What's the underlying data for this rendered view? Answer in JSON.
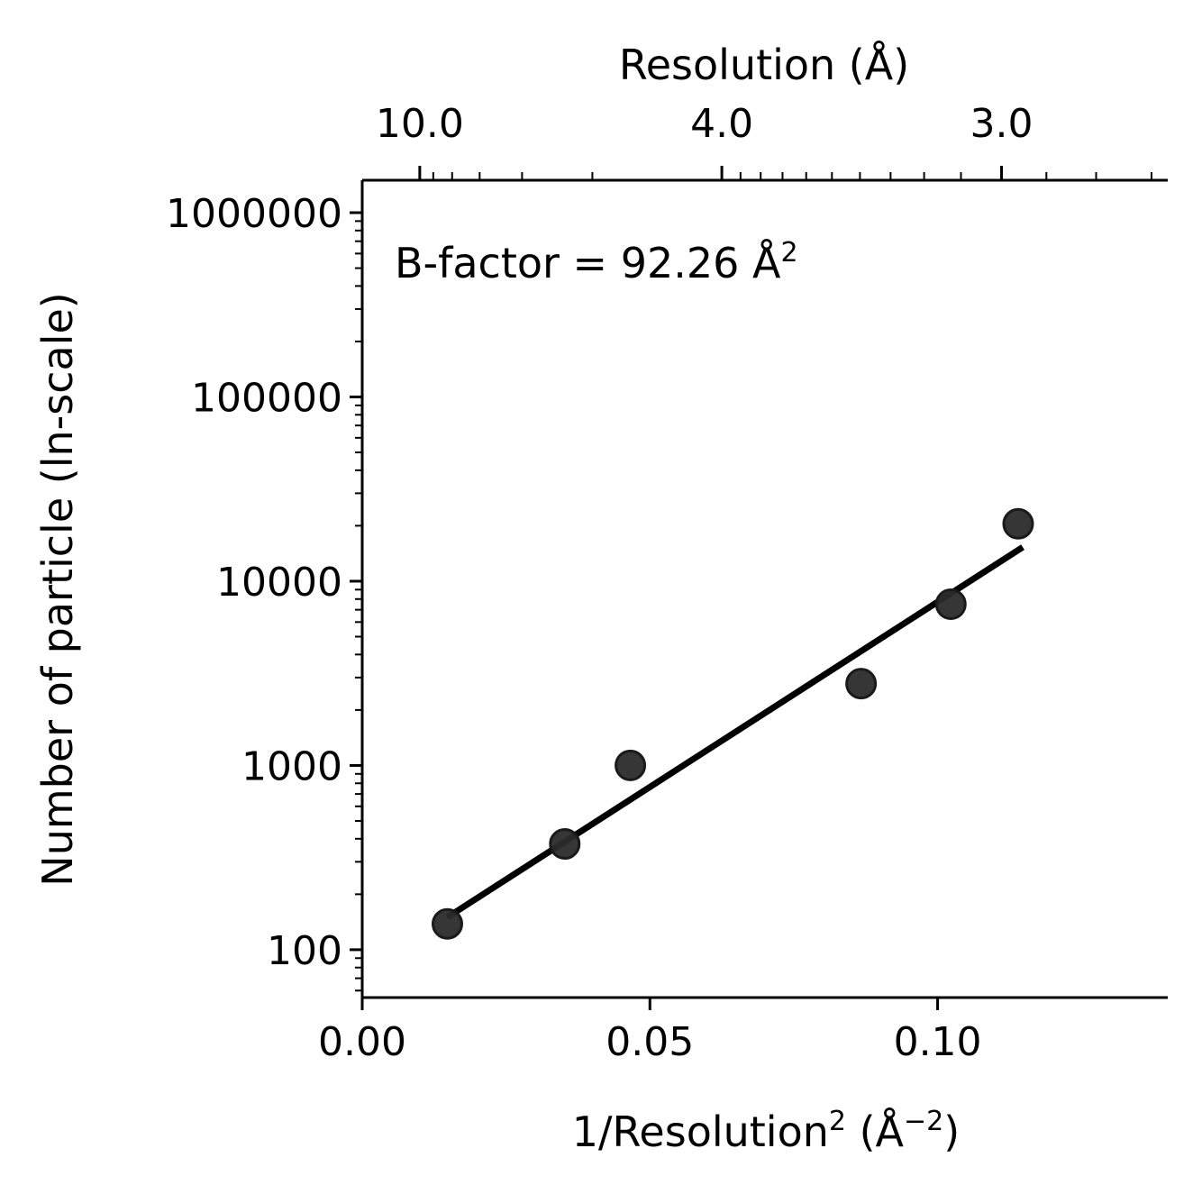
{
  "chart_data": {
    "type": "scatter",
    "annotation": "B-factor = 92.26 Å",
    "annotation_superscript": "2",
    "xlabel": "1/Resolution",
    "xlabel_superscript": "2",
    "xlabel_unit_open": " (Å",
    "xlabel_unit_superscript": "−2",
    "xlabel_unit_close": ")",
    "ylabel": "Number of particle (ln-scale)",
    "top_xlabel": "Resolution (Å)",
    "xlim": [
      0.0,
      0.14
    ],
    "ylim": [
      55,
      1500000
    ],
    "yscale": "log",
    "x_ticks": [
      0.0,
      0.05,
      0.1
    ],
    "x_tick_labels": [
      "0.00",
      "0.05",
      "0.10"
    ],
    "y_ticks": [
      100,
      1000,
      10000,
      100000,
      1000000
    ],
    "y_tick_labels": [
      "100",
      "1000",
      "10000",
      "100000",
      "1000000"
    ],
    "top_ticks": [
      10.0,
      4.0,
      3.0
    ],
    "top_tick_labels": [
      "10.0",
      "4.0",
      "3.0"
    ],
    "top_minor_ticks": [
      9,
      8,
      7,
      6,
      5,
      3.9,
      3.8,
      3.7,
      3.6,
      3.5,
      3.4,
      3.3,
      3.2,
      3.1,
      2.9,
      2.8,
      2.7
    ],
    "points": [
      {
        "x": 0.0148,
        "y": 138
      },
      {
        "x": 0.0352,
        "y": 375
      },
      {
        "x": 0.0466,
        "y": 1000
      },
      {
        "x": 0.0867,
        "y": 2780
      },
      {
        "x": 0.1023,
        "y": 7500
      },
      {
        "x": 0.114,
        "y": 20500
      }
    ],
    "fit_line": {
      "x": [
        0.0148,
        0.1148
      ],
      "y": [
        150,
        15300
      ]
    },
    "colors": {
      "points": "#2b2b2b",
      "line": "#000000",
      "axes": "#000000"
    },
    "grid": false
  }
}
